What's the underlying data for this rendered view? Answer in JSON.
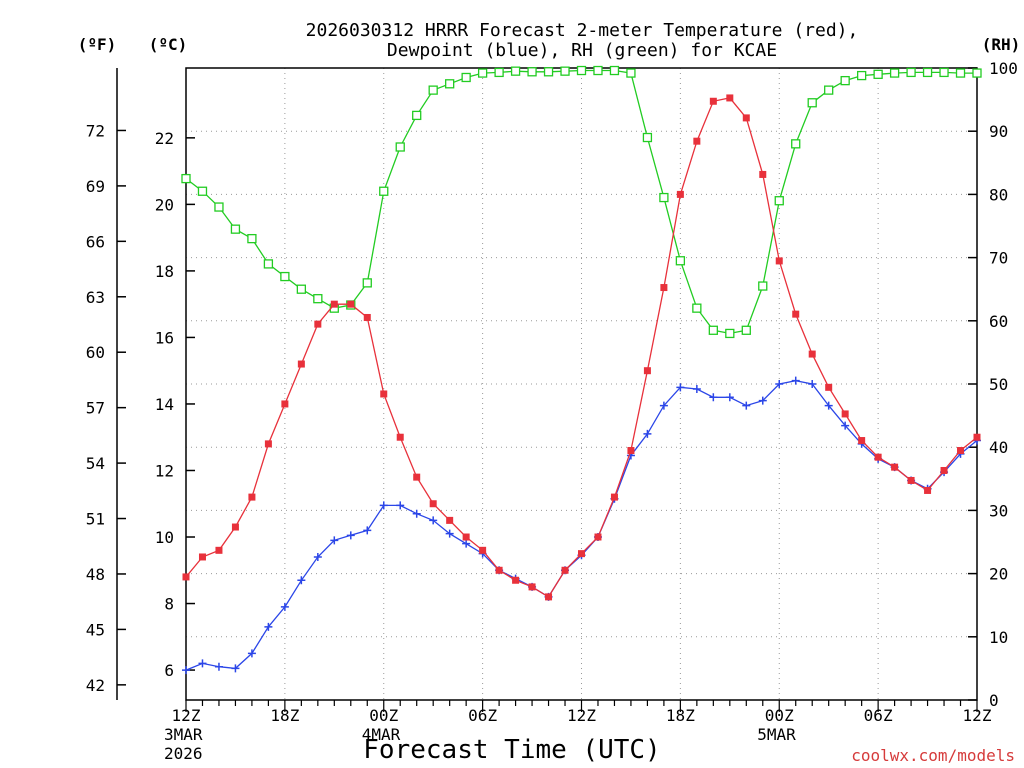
{
  "chart_data": {
    "type": "line",
    "title_lines": [
      "2026030312 HRRR Forecast 2-meter Temperature (red),",
      "Dewpoint (blue), RH (green) for KCAE"
    ],
    "xlabel": "Forecast Time (UTC)",
    "credit": "coolwx.com/models",
    "units": {
      "left_f": "(ºF)",
      "left_c": "(ºC)",
      "right_rh": "(RH)"
    },
    "x_ticks": [
      {
        "hour": 0,
        "label": "12Z",
        "sub1": "3MAR",
        "sub2": "2026"
      },
      {
        "hour": 6,
        "label": "18Z"
      },
      {
        "hour": 12,
        "label": "00Z",
        "sub1": "4MAR"
      },
      {
        "hour": 18,
        "label": "06Z"
      },
      {
        "hour": 24,
        "label": "12Z"
      },
      {
        "hour": 30,
        "label": "18Z"
      },
      {
        "hour": 36,
        "label": "00Z",
        "sub1": "5MAR"
      },
      {
        "hour": 42,
        "label": "06Z"
      },
      {
        "hour": 48,
        "label": "12Z"
      }
    ],
    "xlim": [
      0,
      48
    ],
    "ylim_c": [
      5.1,
      24.1
    ],
    "y_ticks_c": [
      "6",
      "8",
      "10",
      "12",
      "14",
      "16",
      "18",
      "20",
      "22"
    ],
    "y_ticks_f": [
      "42",
      "45",
      "48",
      "51",
      "54",
      "57",
      "60",
      "63",
      "66",
      "69",
      "72"
    ],
    "ylim_rh": [
      0,
      100
    ],
    "y_ticks_rh": [
      "0",
      "10",
      "20",
      "30",
      "40",
      "50",
      "60",
      "70",
      "80",
      "90",
      "100"
    ],
    "grid": true,
    "series": [
      {
        "name": "Temperature",
        "axis": "c",
        "color": "#e8313b",
        "marker": "filled-square",
        "values": [
          8.8,
          9.4,
          9.6,
          10.3,
          11.2,
          12.8,
          14.0,
          15.2,
          16.4,
          17.0,
          17.0,
          16.6,
          14.3,
          13.0,
          11.8,
          11.0,
          10.5,
          10.0,
          9.6,
          9.0,
          8.7,
          8.5,
          8.2,
          9.0,
          9.5,
          10.0,
          11.2,
          12.6,
          15.0,
          17.5,
          20.3,
          21.9,
          23.1,
          23.2,
          22.6,
          20.9,
          18.3,
          16.7,
          15.5,
          14.5,
          13.7,
          12.9,
          12.4,
          12.1,
          11.7,
          11.4,
          12.0,
          12.6,
          13.0
        ]
      },
      {
        "name": "Dewpoint",
        "axis": "c",
        "color": "#2b46e8",
        "marker": "plus",
        "values": [
          6.0,
          6.2,
          6.1,
          6.05,
          6.5,
          7.3,
          7.9,
          8.7,
          9.4,
          9.9,
          10.05,
          10.2,
          10.95,
          10.95,
          10.7,
          10.5,
          10.1,
          9.8,
          9.5,
          9.0,
          8.75,
          8.5,
          8.2,
          9.0,
          9.45,
          10.0,
          11.15,
          12.45,
          13.1,
          13.95,
          14.5,
          14.45,
          14.2,
          14.2,
          13.95,
          14.1,
          14.6,
          14.7,
          14.6,
          13.95,
          13.35,
          12.8,
          12.35,
          12.1,
          11.7,
          11.45,
          11.95,
          12.5,
          12.9
        ]
      },
      {
        "name": "RH",
        "axis": "rh",
        "color": "#22cc22",
        "marker": "open-square",
        "values": [
          82.5,
          80.5,
          78,
          74.5,
          73,
          69,
          67,
          65,
          63.5,
          62,
          62.5,
          66,
          80.5,
          87.5,
          92.5,
          96.5,
          97.5,
          98.5,
          99.2,
          99.3,
          99.5,
          99.4,
          99.4,
          99.5,
          99.6,
          99.6,
          99.6,
          99.2,
          89,
          79.5,
          69.5,
          62,
          58.5,
          58,
          58.5,
          65.5,
          79,
          88,
          94.5,
          96.5,
          98,
          98.8,
          99,
          99.2,
          99.3,
          99.3,
          99.3,
          99.2,
          99.2
        ]
      }
    ]
  }
}
